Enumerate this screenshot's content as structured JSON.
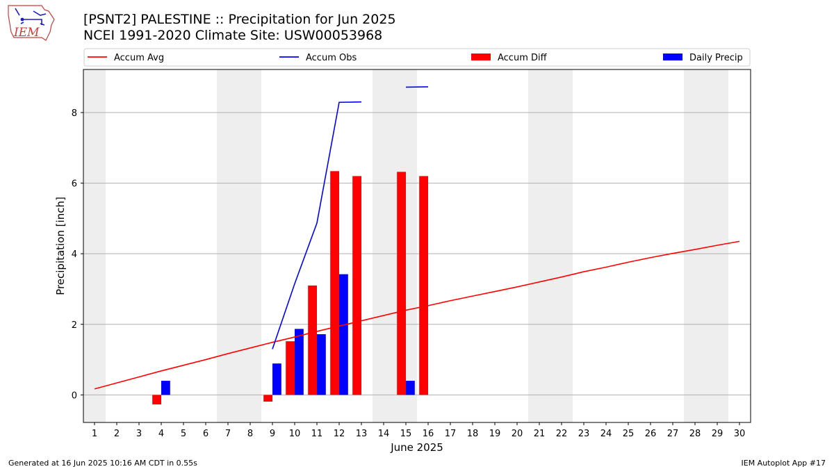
{
  "header": {
    "title_line1": "[PSNT2] PALESTINE :: Precipitation for Jun 2025",
    "title_line2": "NCEI 1991-2020 Climate Site: USW00053968",
    "logo_text": "IEM"
  },
  "footer": {
    "generated": "Generated at 16 Jun 2025 10:16 AM CDT in 0.55s",
    "app": "IEM Autoplot App #17"
  },
  "chart_data": {
    "type": "bar",
    "xlabel": "June 2025",
    "ylabel": "Precipitation [inch]",
    "x_ticks": [
      1,
      2,
      3,
      4,
      5,
      6,
      7,
      8,
      9,
      10,
      11,
      12,
      13,
      14,
      15,
      16,
      17,
      18,
      19,
      20,
      21,
      22,
      23,
      24,
      25,
      26,
      27,
      28,
      29,
      30
    ],
    "xlim": [
      0.5,
      30.5
    ],
    "ylim": [
      -0.78,
      9.22
    ],
    "y_ticks": [
      0,
      2,
      4,
      6,
      8
    ],
    "grid": "horizontal",
    "legend_position": "top",
    "weekend_shading": [
      [
        0.5,
        1.5
      ],
      [
        6.5,
        8.5
      ],
      [
        13.5,
        15.5
      ],
      [
        20.5,
        22.5
      ],
      [
        27.5,
        29.5
      ]
    ],
    "weekend_color": "#eeeeee",
    "legend": [
      {
        "label": "Accum Avg",
        "kind": "line",
        "color": "#ff0000"
      },
      {
        "label": "Accum Obs",
        "kind": "line",
        "color": "#0000ff"
      },
      {
        "label": "Accum Diff",
        "kind": "bar",
        "color": "#ff0000"
      },
      {
        "label": "Daily Precip",
        "kind": "bar",
        "color": "#0000ff"
      }
    ],
    "series": [
      {
        "name": "Accum Avg",
        "type": "line",
        "color": "#ff0000",
        "x": [
          1,
          2,
          3,
          4,
          5,
          6,
          7,
          8,
          9,
          10,
          11,
          12,
          13,
          14,
          15,
          16,
          17,
          18,
          19,
          20,
          21,
          22,
          23,
          24,
          25,
          26,
          27,
          28,
          29,
          30
        ],
        "values": [
          0.17,
          0.34,
          0.51,
          0.68,
          0.84,
          1.0,
          1.17,
          1.33,
          1.49,
          1.64,
          1.8,
          1.95,
          2.1,
          2.25,
          2.4,
          2.53,
          2.67,
          2.8,
          2.93,
          3.06,
          3.2,
          3.34,
          3.49,
          3.62,
          3.76,
          3.89,
          4.01,
          4.12,
          4.24,
          4.35
        ]
      },
      {
        "name": "Accum Obs",
        "type": "line",
        "color": "#0000ff",
        "segments": [
          {
            "x": [
              9,
              10,
              11,
              12,
              13
            ],
            "values": [
              1.3,
              3.15,
              4.87,
              8.29,
              8.3
            ]
          },
          {
            "x": [
              15,
              16
            ],
            "values": [
              8.72,
              8.73
            ]
          }
        ]
      },
      {
        "name": "Accum Diff",
        "type": "bar",
        "color": "#ff0000",
        "x": [
          4,
          9,
          10,
          11,
          12,
          13,
          15,
          16
        ],
        "values": [
          -0.27,
          -0.19,
          1.52,
          3.1,
          6.34,
          6.2,
          6.32,
          6.2
        ]
      },
      {
        "name": "Daily Precip",
        "type": "bar",
        "color": "#0000ff",
        "x": [
          4,
          9,
          10,
          11,
          12,
          15
        ],
        "values": [
          0.4,
          0.89,
          1.87,
          1.72,
          3.42,
          0.4
        ]
      }
    ]
  }
}
